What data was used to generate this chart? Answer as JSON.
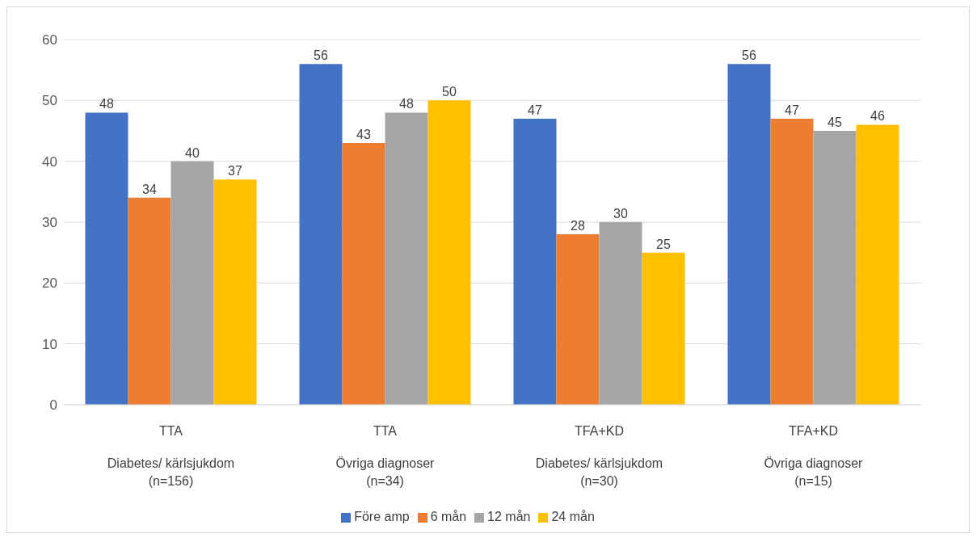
{
  "chart_data": {
    "type": "bar",
    "categories": [
      "TTA\nDiabetes/ kärlsjukdom\n(n=156)",
      "TTA\nÖvriga diagnoser\n(n=34)",
      "TFA+KD\nDiabetes/ kärlsjukdom\n(n=30)",
      "TFA+KD\nÖvriga diagnoser\n(n=15)"
    ],
    "series": [
      {
        "name": "Före amp",
        "color": "#4472c4",
        "values": [
          48,
          56,
          47,
          56
        ]
      },
      {
        "name": "6 mån",
        "color": "#ed7d31",
        "values": [
          34,
          43,
          28,
          47
        ]
      },
      {
        "name": "12 mån",
        "color": "#a5a5a5",
        "values": [
          40,
          48,
          30,
          45
        ]
      },
      {
        "name": "24 mån",
        "color": "#ffc000",
        "values": [
          37,
          50,
          25,
          46
        ]
      }
    ],
    "ylim": [
      0,
      60
    ],
    "yticks": [
      0,
      10,
      20,
      30,
      40,
      50,
      60
    ],
    "grid": "y",
    "legend": "bottom",
    "data_labels": true
  }
}
